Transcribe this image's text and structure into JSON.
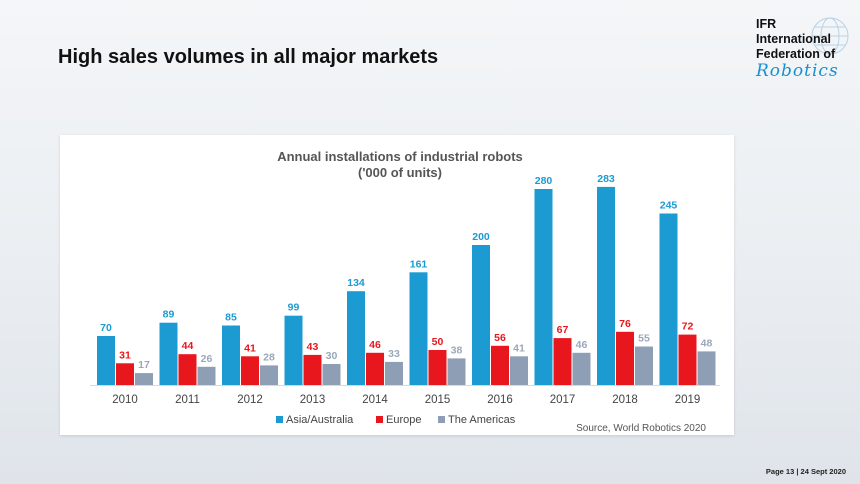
{
  "slide": {
    "title": "High sales volumes in all major markets",
    "footer": "Page 13 | 24 Sept 2020"
  },
  "logo": {
    "line1": "IFR",
    "line2": "International",
    "line3": "Federation of",
    "line4": "Robotics"
  },
  "chart_data": {
    "type": "bar",
    "title": "Annual installations of industrial robots",
    "subtitle": "('000 of units)",
    "categories": [
      "2010",
      "2011",
      "2012",
      "2013",
      "2014",
      "2015",
      "2016",
      "2017",
      "2018",
      "2019"
    ],
    "series": [
      {
        "name": "Asia/Australia",
        "color": "#1b9bd1",
        "label_color": "#1b9bd1",
        "values": [
          70,
          89,
          85,
          99,
          134,
          161,
          200,
          280,
          283,
          245
        ]
      },
      {
        "name": "Europe",
        "color": "#e8171d",
        "label_color": "#e8171d",
        "values": [
          31,
          44,
          41,
          43,
          46,
          50,
          56,
          67,
          76,
          72
        ]
      },
      {
        "name": "The Americas",
        "color": "#8e9fb5",
        "label_color": "#9aa8ba",
        "values": [
          17,
          26,
          28,
          30,
          33,
          38,
          41,
          46,
          55,
          48
        ]
      }
    ],
    "ylim": [
      0,
      300
    ],
    "grid": false,
    "legend_position": "bottom",
    "source": "Source, World Robotics 2020"
  }
}
